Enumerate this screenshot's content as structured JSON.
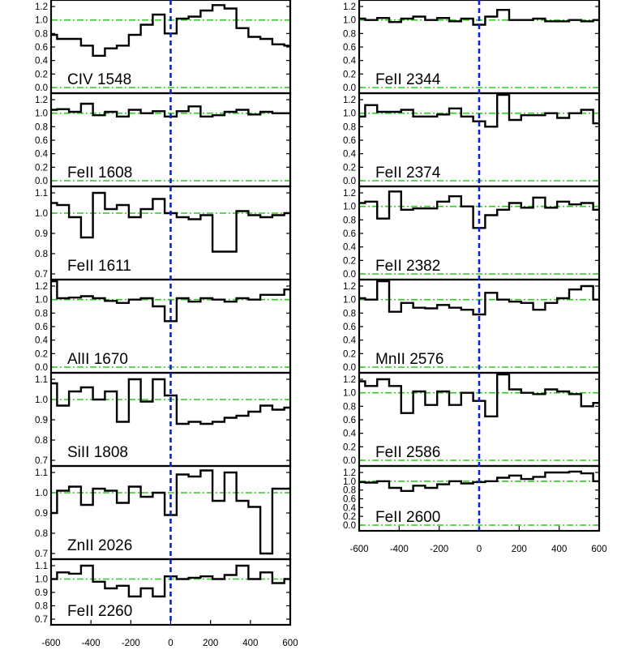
{
  "chart_data": {
    "type": "line",
    "x_ticks": [
      -600,
      -400,
      -200,
      0,
      200,
      400,
      600
    ],
    "xlim": [
      -600,
      600
    ],
    "reference_velocity": 0,
    "continuum_level": 1.0,
    "colors": {
      "spectrum": "#000000",
      "continuum": "#2ecc1f",
      "zero_velocity": "#0a21d9"
    },
    "x": [
      -600,
      -540,
      -480,
      -420,
      -360,
      -300,
      -240,
      -180,
      -120,
      -60,
      0,
      60,
      120,
      180,
      240,
      300,
      360,
      420,
      480,
      540,
      600
    ],
    "panels": [
      {
        "label": "CIV 1548",
        "ylim": [
          0,
          1.4
        ],
        "yticks": [
          "0.0",
          "0.2",
          "0.4",
          "0.6",
          "0.8",
          "1.0",
          "1.2"
        ],
        "y": [
          0.78,
          0.72,
          0.72,
          0.62,
          0.47,
          0.58,
          0.62,
          0.78,
          0.93,
          1.08,
          0.8,
          1.02,
          1.05,
          1.14,
          1.22,
          1.17,
          0.88,
          0.75,
          0.72,
          0.64,
          0.62
        ]
      },
      {
        "label": "FeII 1608",
        "ylim": [
          0,
          1.4
        ],
        "yticks": [
          "0.0",
          "0.2",
          "0.4",
          "0.6",
          "0.8",
          "1.0",
          "1.2"
        ],
        "y": [
          1.05,
          1.06,
          1.02,
          1.14,
          0.97,
          1.02,
          0.95,
          1.05,
          1.0,
          1.03,
          0.95,
          1.03,
          1.1,
          0.95,
          0.97,
          1.02,
          1.05,
          0.98,
          1.02,
          1.0,
          1.0
        ]
      },
      {
        "label": "FeII 1611",
        "ylim": [
          0.7,
          1.1
        ],
        "yticks": [
          "0.7",
          "0.8",
          "0.9",
          "1.0",
          "1.1"
        ],
        "y": [
          1.05,
          1.04,
          0.98,
          0.88,
          1.1,
          1.02,
          1.04,
          0.98,
          1.02,
          1.07,
          1.0,
          0.98,
          0.97,
          0.99,
          0.81,
          0.81,
          1.01,
          0.99,
          0.98,
          0.99,
          1.0
        ]
      },
      {
        "label": "AlII 1670",
        "ylim": [
          0,
          1.4
        ],
        "yticks": [
          "0.0",
          "0.2",
          "0.4",
          "0.6",
          "0.8",
          "1.0",
          "1.2"
        ],
        "y": [
          1.3,
          1.02,
          1.03,
          1.05,
          1.02,
          0.98,
          0.95,
          1.0,
          1.02,
          0.9,
          0.68,
          1.02,
          0.97,
          1.02,
          1.0,
          0.97,
          1.02,
          1.0,
          1.07,
          1.07,
          1.15
        ]
      },
      {
        "label": "SiII 1808",
        "ylim": [
          0.7,
          1.1
        ],
        "yticks": [
          "0.7",
          "0.8",
          "0.9",
          "1.0",
          "1.1"
        ],
        "y": [
          1.08,
          0.97,
          1.04,
          1.06,
          1.0,
          1.04,
          0.89,
          1.1,
          0.99,
          1.1,
          1.02,
          0.88,
          0.89,
          0.88,
          0.89,
          0.91,
          0.92,
          0.94,
          0.97,
          0.95,
          0.96
        ]
      },
      {
        "label": "ZnII 2026",
        "ylim": [
          0.7,
          1.1
        ],
        "yticks": [
          "0.7",
          "0.8",
          "0.9",
          "1.0",
          "1.1"
        ],
        "y": [
          0.9,
          1.01,
          1.03,
          0.94,
          1.02,
          1.01,
          0.95,
          1.03,
          0.98,
          1.0,
          0.89,
          1.09,
          1.08,
          1.11,
          0.96,
          1.1,
          0.96,
          0.93,
          0.7,
          1.02,
          1.02
        ]
      },
      {
        "label": "FeII 2260",
        "ylim": [
          0.7,
          1.1
        ],
        "yticks": [
          "0.7",
          "0.8",
          "0.9",
          "1.0",
          "1.1"
        ],
        "y": [
          1.0,
          1.05,
          1.04,
          1.1,
          0.98,
          0.93,
          0.95,
          0.87,
          0.93,
          0.87,
          1.02,
          1.0,
          1.01,
          1.02,
          1.0,
          1.03,
          1.1,
          1.0,
          1.05,
          0.97,
          1.0
        ]
      },
      {
        "label": "FeII 2344",
        "ylim": [
          0,
          1.4
        ],
        "yticks": [
          "0.0",
          "0.2",
          "0.4",
          "0.6",
          "0.8",
          "1.0",
          "1.2"
        ],
        "y": [
          1.02,
          1.0,
          1.03,
          0.97,
          1.02,
          1.05,
          1.0,
          1.03,
          0.98,
          1.02,
          0.93,
          1.05,
          1.15,
          1.0,
          1.0,
          1.02,
          0.98,
          0.98,
          1.0,
          0.98,
          1.0
        ]
      },
      {
        "label": "FeII 2374",
        "ylim": [
          0,
          1.4
        ],
        "yticks": [
          "0.0",
          "0.2",
          "0.4",
          "0.6",
          "0.8",
          "1.0",
          "1.2"
        ],
        "y": [
          0.95,
          1.12,
          1.02,
          1.02,
          1.05,
          0.95,
          0.95,
          0.98,
          1.07,
          0.95,
          0.88,
          0.8,
          1.38,
          0.9,
          0.97,
          0.97,
          1.0,
          0.93,
          1.0,
          1.05,
          0.85
        ]
      },
      {
        "label": "FeII 2382",
        "ylim": [
          0,
          1.4
        ],
        "yticks": [
          "0.0",
          "0.2",
          "0.4",
          "0.6",
          "0.8",
          "1.0",
          "1.2"
        ],
        "y": [
          1.05,
          1.07,
          0.82,
          1.22,
          0.95,
          0.97,
          0.97,
          1.07,
          1.15,
          1.0,
          0.68,
          0.87,
          0.95,
          1.05,
          0.98,
          1.13,
          0.98,
          1.07,
          1.03,
          1.05,
          0.95
        ]
      },
      {
        "label": "MnII 2576",
        "ylim": [
          0,
          1.4
        ],
        "yticks": [
          "0.0",
          "0.2",
          "0.4",
          "0.6",
          "0.8",
          "1.0",
          "1.2"
        ],
        "y": [
          1.02,
          1.0,
          1.32,
          0.82,
          0.95,
          0.88,
          0.87,
          0.92,
          0.88,
          0.85,
          0.78,
          1.1,
          1.0,
          0.97,
          0.95,
          0.85,
          0.95,
          1.02,
          1.15,
          1.2,
          1.0
        ]
      },
      {
        "label": "FeII 2586",
        "ylim": [
          0,
          1.4
        ],
        "yticks": [
          "0.0",
          "0.2",
          "0.4",
          "0.6",
          "0.8",
          "1.0",
          "1.2"
        ],
        "y": [
          1.17,
          1.1,
          1.2,
          1.1,
          0.7,
          1.02,
          0.82,
          1.02,
          0.82,
          1.0,
          0.88,
          0.65,
          1.4,
          1.05,
          1.0,
          0.98,
          1.05,
          1.02,
          0.98,
          0.8,
          0.85
        ]
      },
      {
        "label": "FeII 2600",
        "ylim": [
          0,
          1.4
        ],
        "yticks": [
          "0.0",
          "0.2",
          "0.4",
          "0.6",
          "0.8",
          "1.0",
          "1.2"
        ],
        "y": [
          0.98,
          0.97,
          1.0,
          0.85,
          0.78,
          0.9,
          0.85,
          0.93,
          1.0,
          0.95,
          0.98,
          1.0,
          1.08,
          1.13,
          1.05,
          1.1,
          1.2,
          1.2,
          1.22,
          1.18,
          1.0
        ]
      }
    ]
  }
}
